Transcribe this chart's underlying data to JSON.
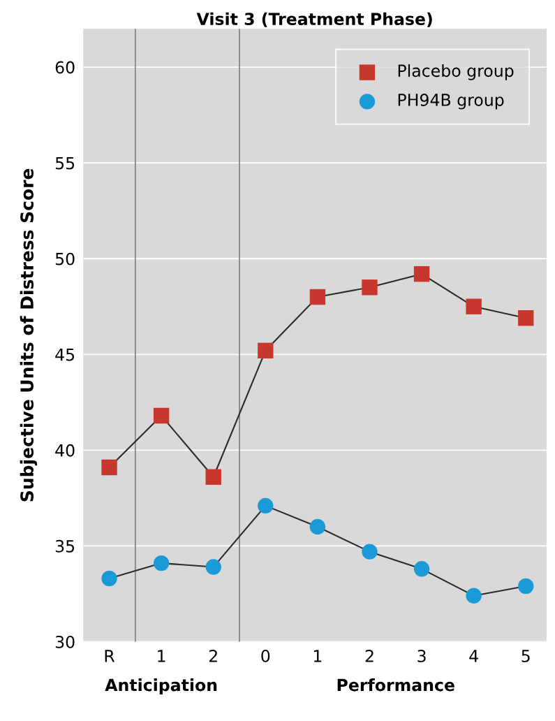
{
  "chart_data": {
    "type": "line",
    "title": "Visit 3 (Treatment Phase)",
    "ylabel": "Subjective Units of Distress Score",
    "categories": [
      "R",
      "1",
      "2",
      "0",
      "1",
      "2",
      "3",
      "4",
      "5"
    ],
    "ylim": [
      30,
      62
    ],
    "yticks": [
      30,
      35,
      40,
      45,
      50,
      55,
      60
    ],
    "series": [
      {
        "name": "Placebo group",
        "color": "#c8372d",
        "marker": "square",
        "values": [
          39.1,
          41.8,
          38.6,
          45.2,
          48.0,
          48.5,
          49.2,
          47.5,
          46.9
        ]
      },
      {
        "name": "PH94B group",
        "color": "#1a9ad6",
        "marker": "circle",
        "values": [
          33.3,
          34.1,
          33.9,
          37.1,
          36.0,
          34.7,
          33.8,
          32.4,
          32.9
        ]
      }
    ],
    "annotations": [
      "Anticipation",
      "Performance"
    ],
    "grid": "y",
    "legend": "top right"
  }
}
